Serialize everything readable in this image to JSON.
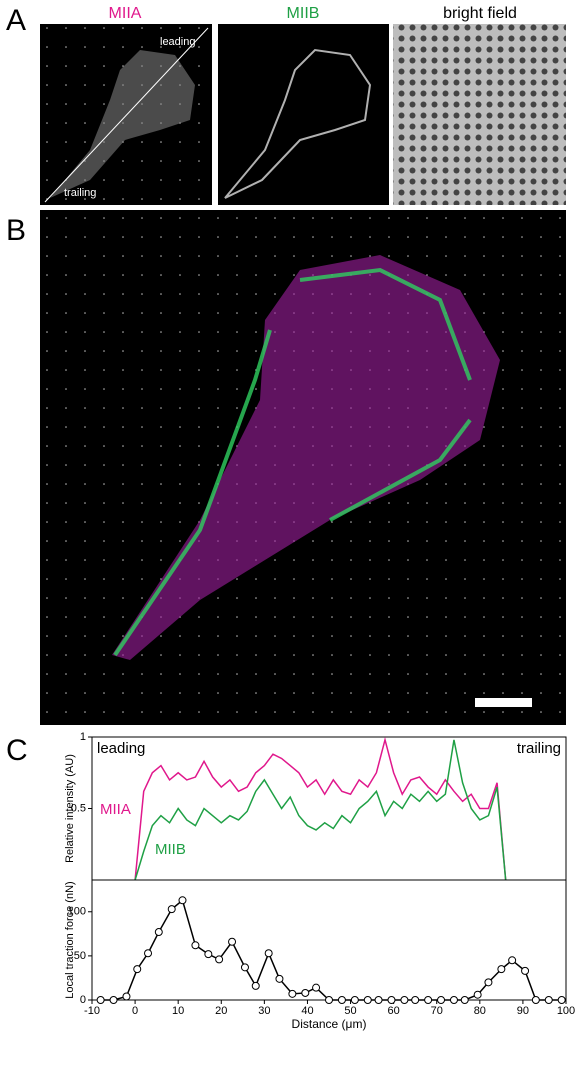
{
  "panel_a": {
    "label": "A",
    "titles": [
      "MIIA",
      "MIIB",
      "bright field"
    ],
    "leading": "leading",
    "trailing": "trailing"
  },
  "panel_b": {
    "label": "B"
  },
  "panel_c": {
    "label": "C"
  },
  "chart_data": [
    {
      "type": "line",
      "ylabel": "Relative intensity (AU)",
      "left_note": "leading",
      "right_note": "trailing",
      "x": [
        0,
        2,
        4,
        6,
        8,
        10,
        12,
        14,
        16,
        18,
        20,
        22,
        24,
        26,
        28,
        30,
        32,
        34,
        36,
        38,
        40,
        42,
        44,
        46,
        48,
        50,
        52,
        54,
        56,
        58,
        60,
        62,
        64,
        66,
        68,
        70,
        72,
        74,
        76,
        78,
        80,
        82,
        84,
        86
      ],
      "series": [
        {
          "name": "MIIA",
          "color": "#e0188c",
          "values": [
            0,
            0.62,
            0.75,
            0.8,
            0.7,
            0.75,
            0.7,
            0.72,
            0.83,
            0.72,
            0.65,
            0.7,
            0.62,
            0.65,
            0.75,
            0.8,
            0.88,
            0.85,
            0.8,
            0.75,
            0.65,
            0.7,
            0.6,
            0.7,
            0.62,
            0.6,
            0.7,
            0.65,
            0.75,
            0.98,
            0.75,
            0.6,
            0.7,
            0.72,
            0.65,
            0.6,
            0.7,
            0.62,
            0.55,
            0.6,
            0.5,
            0.5,
            0.68,
            0
          ]
        },
        {
          "name": "MIIB",
          "color": "#1fa045",
          "values": [
            0,
            0.2,
            0.38,
            0.45,
            0.4,
            0.5,
            0.42,
            0.38,
            0.5,
            0.45,
            0.4,
            0.45,
            0.42,
            0.48,
            0.62,
            0.7,
            0.6,
            0.5,
            0.58,
            0.45,
            0.38,
            0.35,
            0.4,
            0.36,
            0.45,
            0.4,
            0.5,
            0.55,
            0.62,
            0.45,
            0.55,
            0.5,
            0.6,
            0.55,
            0.62,
            0.55,
            0.6,
            0.98,
            0.68,
            0.5,
            0.42,
            0.45,
            0.65,
            0
          ]
        }
      ],
      "xlim": [
        -10,
        100
      ],
      "ylim": [
        0,
        1
      ],
      "yticks": [
        0.5,
        1
      ]
    },
    {
      "type": "line",
      "ylabel": "Local traction force (nN)",
      "xlabel": "Distance (μm)",
      "color": "#000000",
      "markers": true,
      "x": [
        -8,
        -5,
        -2,
        0.5,
        3,
        5.5,
        8.5,
        11,
        14,
        17,
        19.5,
        22.5,
        25.5,
        28,
        31,
        33.5,
        36.5,
        39.5,
        42,
        45,
        48,
        51,
        54,
        56.5,
        59.5,
        62.5,
        65,
        68,
        71,
        74,
        76.5,
        79.5,
        82,
        85,
        87.5,
        90.5,
        93,
        96,
        99
      ],
      "values": [
        0,
        0,
        4,
        35,
        53,
        77,
        103,
        113,
        62,
        52,
        46,
        66,
        37,
        16,
        53,
        24,
        7,
        8,
        14,
        0,
        0,
        0,
        0,
        0,
        0,
        0,
        0,
        0,
        0,
        0,
        0,
        6,
        20,
        35,
        45,
        33,
        0,
        0,
        0
      ],
      "xlim": [
        -10,
        100
      ],
      "ylim": [
        0,
        136
      ],
      "xticks": [
        -10,
        0,
        10,
        20,
        30,
        40,
        50,
        60,
        70,
        80,
        90,
        100
      ],
      "yticks": [
        0,
        50,
        100
      ]
    }
  ]
}
